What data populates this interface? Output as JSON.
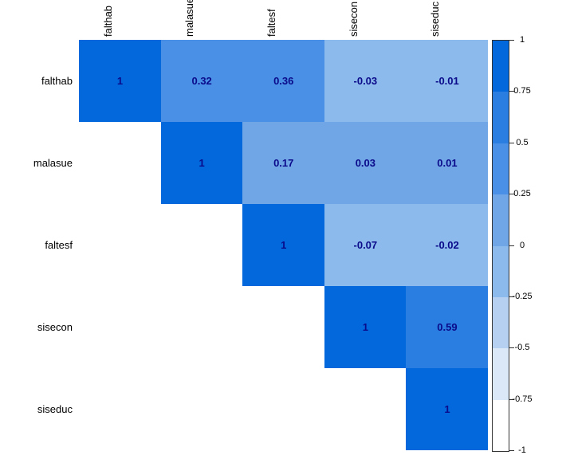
{
  "chart_data": {
    "type": "heatmap",
    "subtype": "correlation-matrix-upper-triangle",
    "title": "",
    "variables": [
      "falthab",
      "malasue",
      "faltesf",
      "sisecon",
      "siseduc"
    ],
    "matrix": [
      [
        1,
        0.32,
        0.36,
        -0.03,
        -0.01
      ],
      [
        null,
        1,
        0.17,
        0.03,
        0.01
      ],
      [
        null,
        null,
        1,
        -0.07,
        -0.02
      ],
      [
        null,
        null,
        null,
        1,
        0.59
      ],
      [
        null,
        null,
        null,
        null,
        1
      ]
    ],
    "value_range": [
      -1,
      1
    ],
    "grid": false,
    "legend_position": "right",
    "colorbar": {
      "tick_labels": [
        "1",
        "0.75",
        "0.5",
        "0.25",
        "0",
        "-0.25",
        "-0.5",
        "-0.75",
        "-1"
      ],
      "band_colors_high_to_low": [
        "#0268dc",
        "#2a7de1",
        "#4a90e6",
        "#70a5e6",
        "#8cbaec",
        "#b6d0f2",
        "#dbe8f8",
        "#ffffff"
      ]
    },
    "colors": {
      "cell_text": "#0a0a8a",
      "label_text": "#000000",
      "background": "#ffffff"
    }
  }
}
